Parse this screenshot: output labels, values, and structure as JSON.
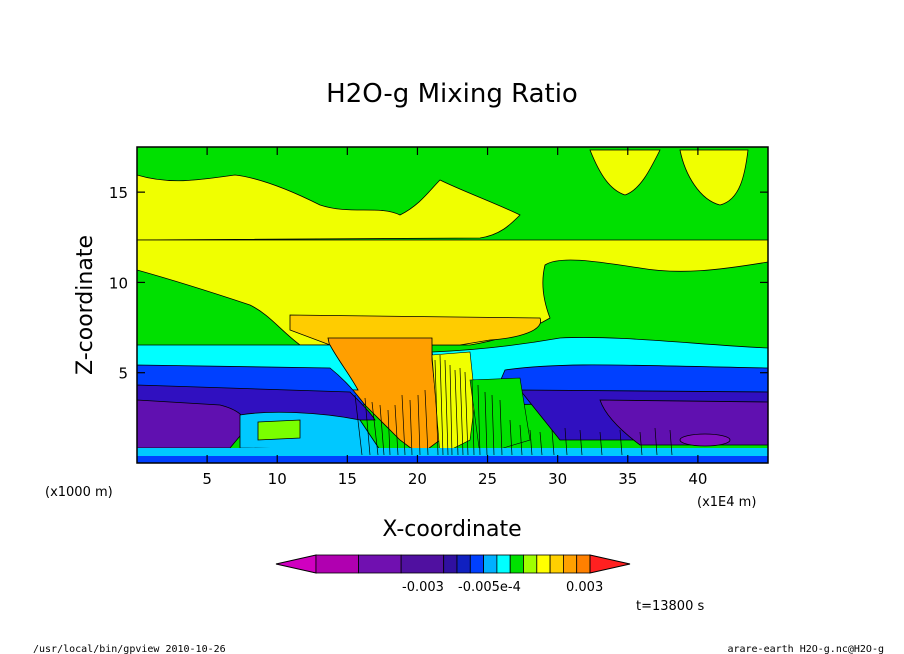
{
  "chart_data": {
    "type": "heatmap",
    "title": "H2O-g Mixing Ratio",
    "xlabel": "X-coordinate",
    "ylabel": "Z-coordinate",
    "x_unit_label": "(x1000 m)",
    "x_scale_label": "(x1E4 m)",
    "xlim": [
      0,
      45
    ],
    "ylim": [
      0,
      17.5
    ],
    "x_ticks": [
      5,
      10,
      15,
      20,
      25,
      30,
      35,
      40
    ],
    "y_ticks": [
      5,
      10,
      15
    ],
    "colorbar": {
      "labels": [
        "-0.003",
        "-0.005e-4",
        "0.003"
      ],
      "colors": [
        "#d000c0",
        "#b000b0",
        "#7010b0",
        "#5010a0",
        "#3010a0",
        "#1020c0",
        "#0040ff",
        "#00b0ff",
        "#00ffff",
        "#00e000",
        "#a0ff00",
        "#ffff00",
        "#ffd000",
        "#ffa000",
        "#ff8000",
        "#ff2020"
      ]
    },
    "time_label": "t=13800 s"
  },
  "footer": {
    "left": "/usr/local/bin/gpview  2010-10-26",
    "right": "arare-earth_H2O-g.nc@H2O-g"
  }
}
